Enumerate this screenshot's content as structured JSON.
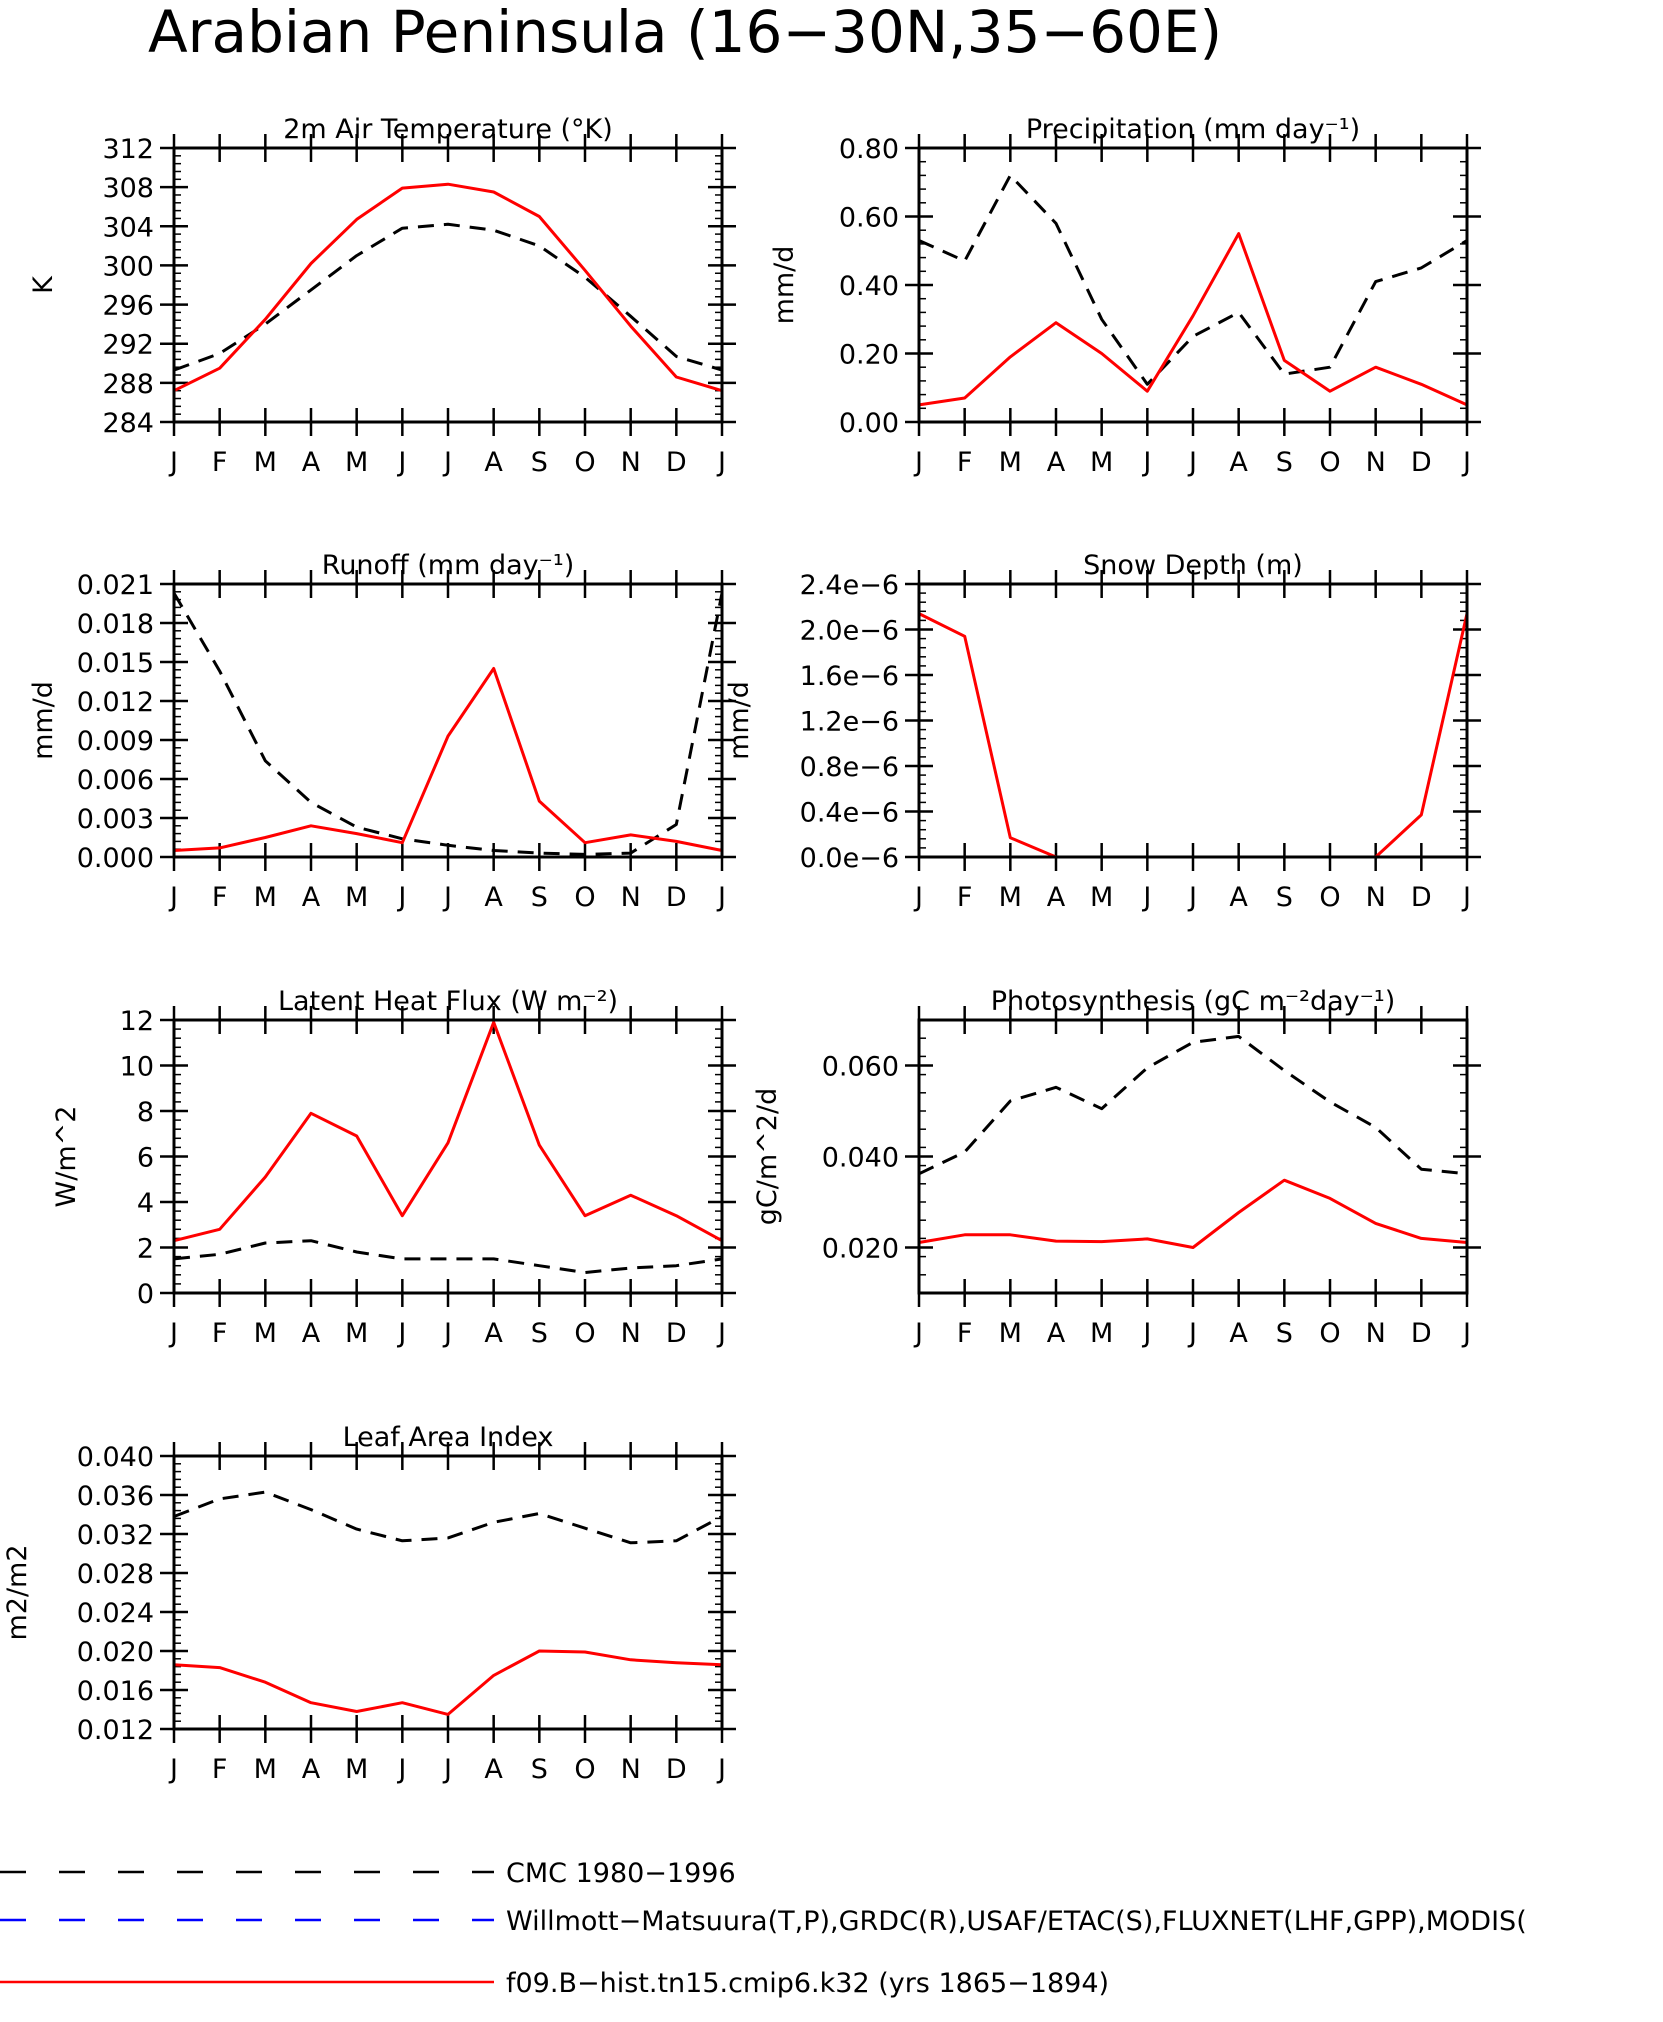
{
  "title": "Arabian Peninsula (16−30N,35−60E)",
  "months": [
    "J",
    "F",
    "M",
    "A",
    "M",
    "J",
    "J",
    "A",
    "S",
    "O",
    "N",
    "D",
    "J"
  ],
  "legend": [
    {
      "label": "CMC 1980−1996",
      "color": "#000000",
      "style": "dashed"
    },
    {
      "label": "Willmott−Matsuura(T,P),GRDC(R),USAF/ETAC(S),FLUXNET(LHF,GPP),MODIS(",
      "color": "#0000ff",
      "style": "dashed"
    },
    {
      "label": "f09.B−hist.tn15.cmip6.k32 (yrs 1865−1894)",
      "color": "#ff0000",
      "style": "solid"
    }
  ],
  "chart_data": [
    {
      "type": "line",
      "title": "2m Air Temperature (°K)",
      "ylabel": "K",
      "ylim": [
        284,
        312
      ],
      "yticks": [
        284,
        288,
        292,
        296,
        300,
        304,
        308,
        312
      ],
      "yticklabels": [
        "284",
        "288",
        "292",
        "296",
        "300",
        "304",
        "308",
        "312"
      ],
      "series": [
        {
          "color": "#000000",
          "style": "dashed",
          "values": [
            289.3,
            291.0,
            294.0,
            297.5,
            301.0,
            303.8,
            304.2,
            303.6,
            302.0,
            298.8,
            294.8,
            290.7,
            289.3
          ]
        },
        {
          "color": "#ff0000",
          "style": "solid",
          "values": [
            287.2,
            289.5,
            294.5,
            300.2,
            304.7,
            307.9,
            308.3,
            307.5,
            305.0,
            299.5,
            293.8,
            288.6,
            287.2
          ]
        }
      ]
    },
    {
      "type": "line",
      "title": "Precipitation (mm day⁻¹)",
      "ylabel": "mm/d",
      "ylim": [
        0,
        0.8
      ],
      "yticks": [
        0,
        0.2,
        0.4,
        0.6,
        0.8
      ],
      "yticklabels": [
        "0.00",
        "0.20",
        "0.40",
        "0.60",
        "0.80"
      ],
      "series": [
        {
          "color": "#000000",
          "style": "dashed",
          "values": [
            0.53,
            0.47,
            0.72,
            0.58,
            0.3,
            0.11,
            0.25,
            0.32,
            0.14,
            0.16,
            0.41,
            0.45,
            0.53
          ]
        },
        {
          "color": "#ff0000",
          "style": "solid",
          "values": [
            0.05,
            0.07,
            0.19,
            0.29,
            0.2,
            0.09,
            0.31,
            0.55,
            0.18,
            0.09,
            0.16,
            0.11,
            0.05
          ]
        }
      ]
    },
    {
      "type": "line",
      "title": "Runoff (mm day⁻¹)",
      "ylabel": "mm/d",
      "ylim": [
        0,
        0.021
      ],
      "yticks": [
        0,
        0.003,
        0.006,
        0.009,
        0.012,
        0.015,
        0.018,
        0.021
      ],
      "yticklabels": [
        "0.000",
        "0.003",
        "0.006",
        "0.009",
        "0.012",
        "0.015",
        "0.018",
        "0.021"
      ],
      "series": [
        {
          "color": "#000000",
          "style": "dashed",
          "values": [
            0.0203,
            0.0143,
            0.0074,
            0.0042,
            0.0023,
            0.0014,
            0.0009,
            0.0005,
            0.0003,
            0.0002,
            0.0003,
            0.0025,
            0.0203
          ]
        },
        {
          "color": "#ff0000",
          "style": "solid",
          "values": [
            0.0005,
            0.0007,
            0.0015,
            0.0024,
            0.0018,
            0.0011,
            0.0093,
            0.0145,
            0.0043,
            0.0011,
            0.0017,
            0.0012,
            0.0005
          ]
        }
      ]
    },
    {
      "type": "line",
      "title": "Snow Depth (m)",
      "ylabel": "mm/d",
      "ylim": [
        0,
        2.4e-06
      ],
      "yticks": [
        0,
        4e-07,
        8e-07,
        1.2e-06,
        1.6e-06,
        2e-06,
        2.4e-06
      ],
      "yticklabels": [
        "0.0e−6",
        "0.4e−6",
        "0.8e−6",
        "1.2e−6",
        "1.6e−6",
        "2.0e−6",
        "2.4e−6"
      ],
      "series": [
        {
          "color": "#000000",
          "style": "dashed",
          "values": [
            0,
            0,
            0,
            0,
            0,
            0,
            0,
            0,
            0,
            0,
            0,
            0,
            0
          ]
        },
        {
          "color": "#ff0000",
          "style": "solid",
          "values": [
            2.14e-06,
            1.94e-06,
            1.7e-07,
            0,
            0,
            0,
            0,
            0,
            0,
            0,
            0,
            3.7e-07,
            2.14e-06
          ]
        }
      ]
    },
    {
      "type": "line",
      "title": "Latent Heat Flux (W m⁻²)",
      "ylabel": "W/m^2",
      "ylim": [
        0,
        12
      ],
      "yticks": [
        0,
        2,
        4,
        6,
        8,
        10,
        12
      ],
      "yticklabels": [
        "0",
        "2",
        "4",
        "6",
        "8",
        "10",
        "12"
      ],
      "series": [
        {
          "color": "#000000",
          "style": "dashed",
          "values": [
            1.5,
            1.7,
            2.2,
            2.3,
            1.8,
            1.5,
            1.5,
            1.5,
            1.2,
            0.9,
            1.1,
            1.2,
            1.5
          ]
        },
        {
          "color": "#ff0000",
          "style": "solid",
          "values": [
            2.3,
            2.8,
            5.1,
            7.9,
            6.9,
            3.4,
            6.6,
            11.9,
            6.5,
            3.4,
            4.3,
            3.4,
            2.3
          ]
        }
      ]
    },
    {
      "type": "line",
      "title": "Photosynthesis (gC m⁻²day⁻¹)",
      "ylabel": "gC/m^2/d",
      "ylim": [
        0.01,
        0.07
      ],
      "yticks": [
        0.02,
        0.04,
        0.06
      ],
      "yticklabels": [
        "0.020",
        "0.040",
        "0.060"
      ],
      "series": [
        {
          "color": "#000000",
          "style": "dashed",
          "values": [
            0.0362,
            0.041,
            0.0522,
            0.0552,
            0.0505,
            0.0595,
            0.0651,
            0.0664,
            0.0589,
            0.052,
            0.0464,
            0.0372,
            0.0362
          ]
        },
        {
          "color": "#ff0000",
          "style": "solid",
          "values": [
            0.0211,
            0.0228,
            0.0228,
            0.0214,
            0.0213,
            0.0219,
            0.02,
            0.0277,
            0.0348,
            0.0308,
            0.0253,
            0.022,
            0.0211
          ]
        }
      ]
    },
    {
      "type": "line",
      "title": "Leaf Area Index",
      "ylabel": "m2/m2",
      "ylim": [
        0.012,
        0.04
      ],
      "yticks": [
        0.012,
        0.016,
        0.02,
        0.024,
        0.028,
        0.032,
        0.036,
        0.04
      ],
      "yticklabels": [
        "0.012",
        "0.016",
        "0.020",
        "0.024",
        "0.028",
        "0.032",
        "0.036",
        "0.040"
      ],
      "series": [
        {
          "color": "#000000",
          "style": "dashed",
          "values": [
            0.0338,
            0.0356,
            0.0363,
            0.0345,
            0.0325,
            0.0313,
            0.0316,
            0.0332,
            0.0341,
            0.0326,
            0.0311,
            0.0313,
            0.0338
          ]
        },
        {
          "color": "#ff0000",
          "style": "solid",
          "values": [
            0.0186,
            0.0183,
            0.0168,
            0.0147,
            0.0138,
            0.0147,
            0.0135,
            0.0175,
            0.02,
            0.0199,
            0.0191,
            0.0188,
            0.0186
          ]
        }
      ]
    }
  ]
}
